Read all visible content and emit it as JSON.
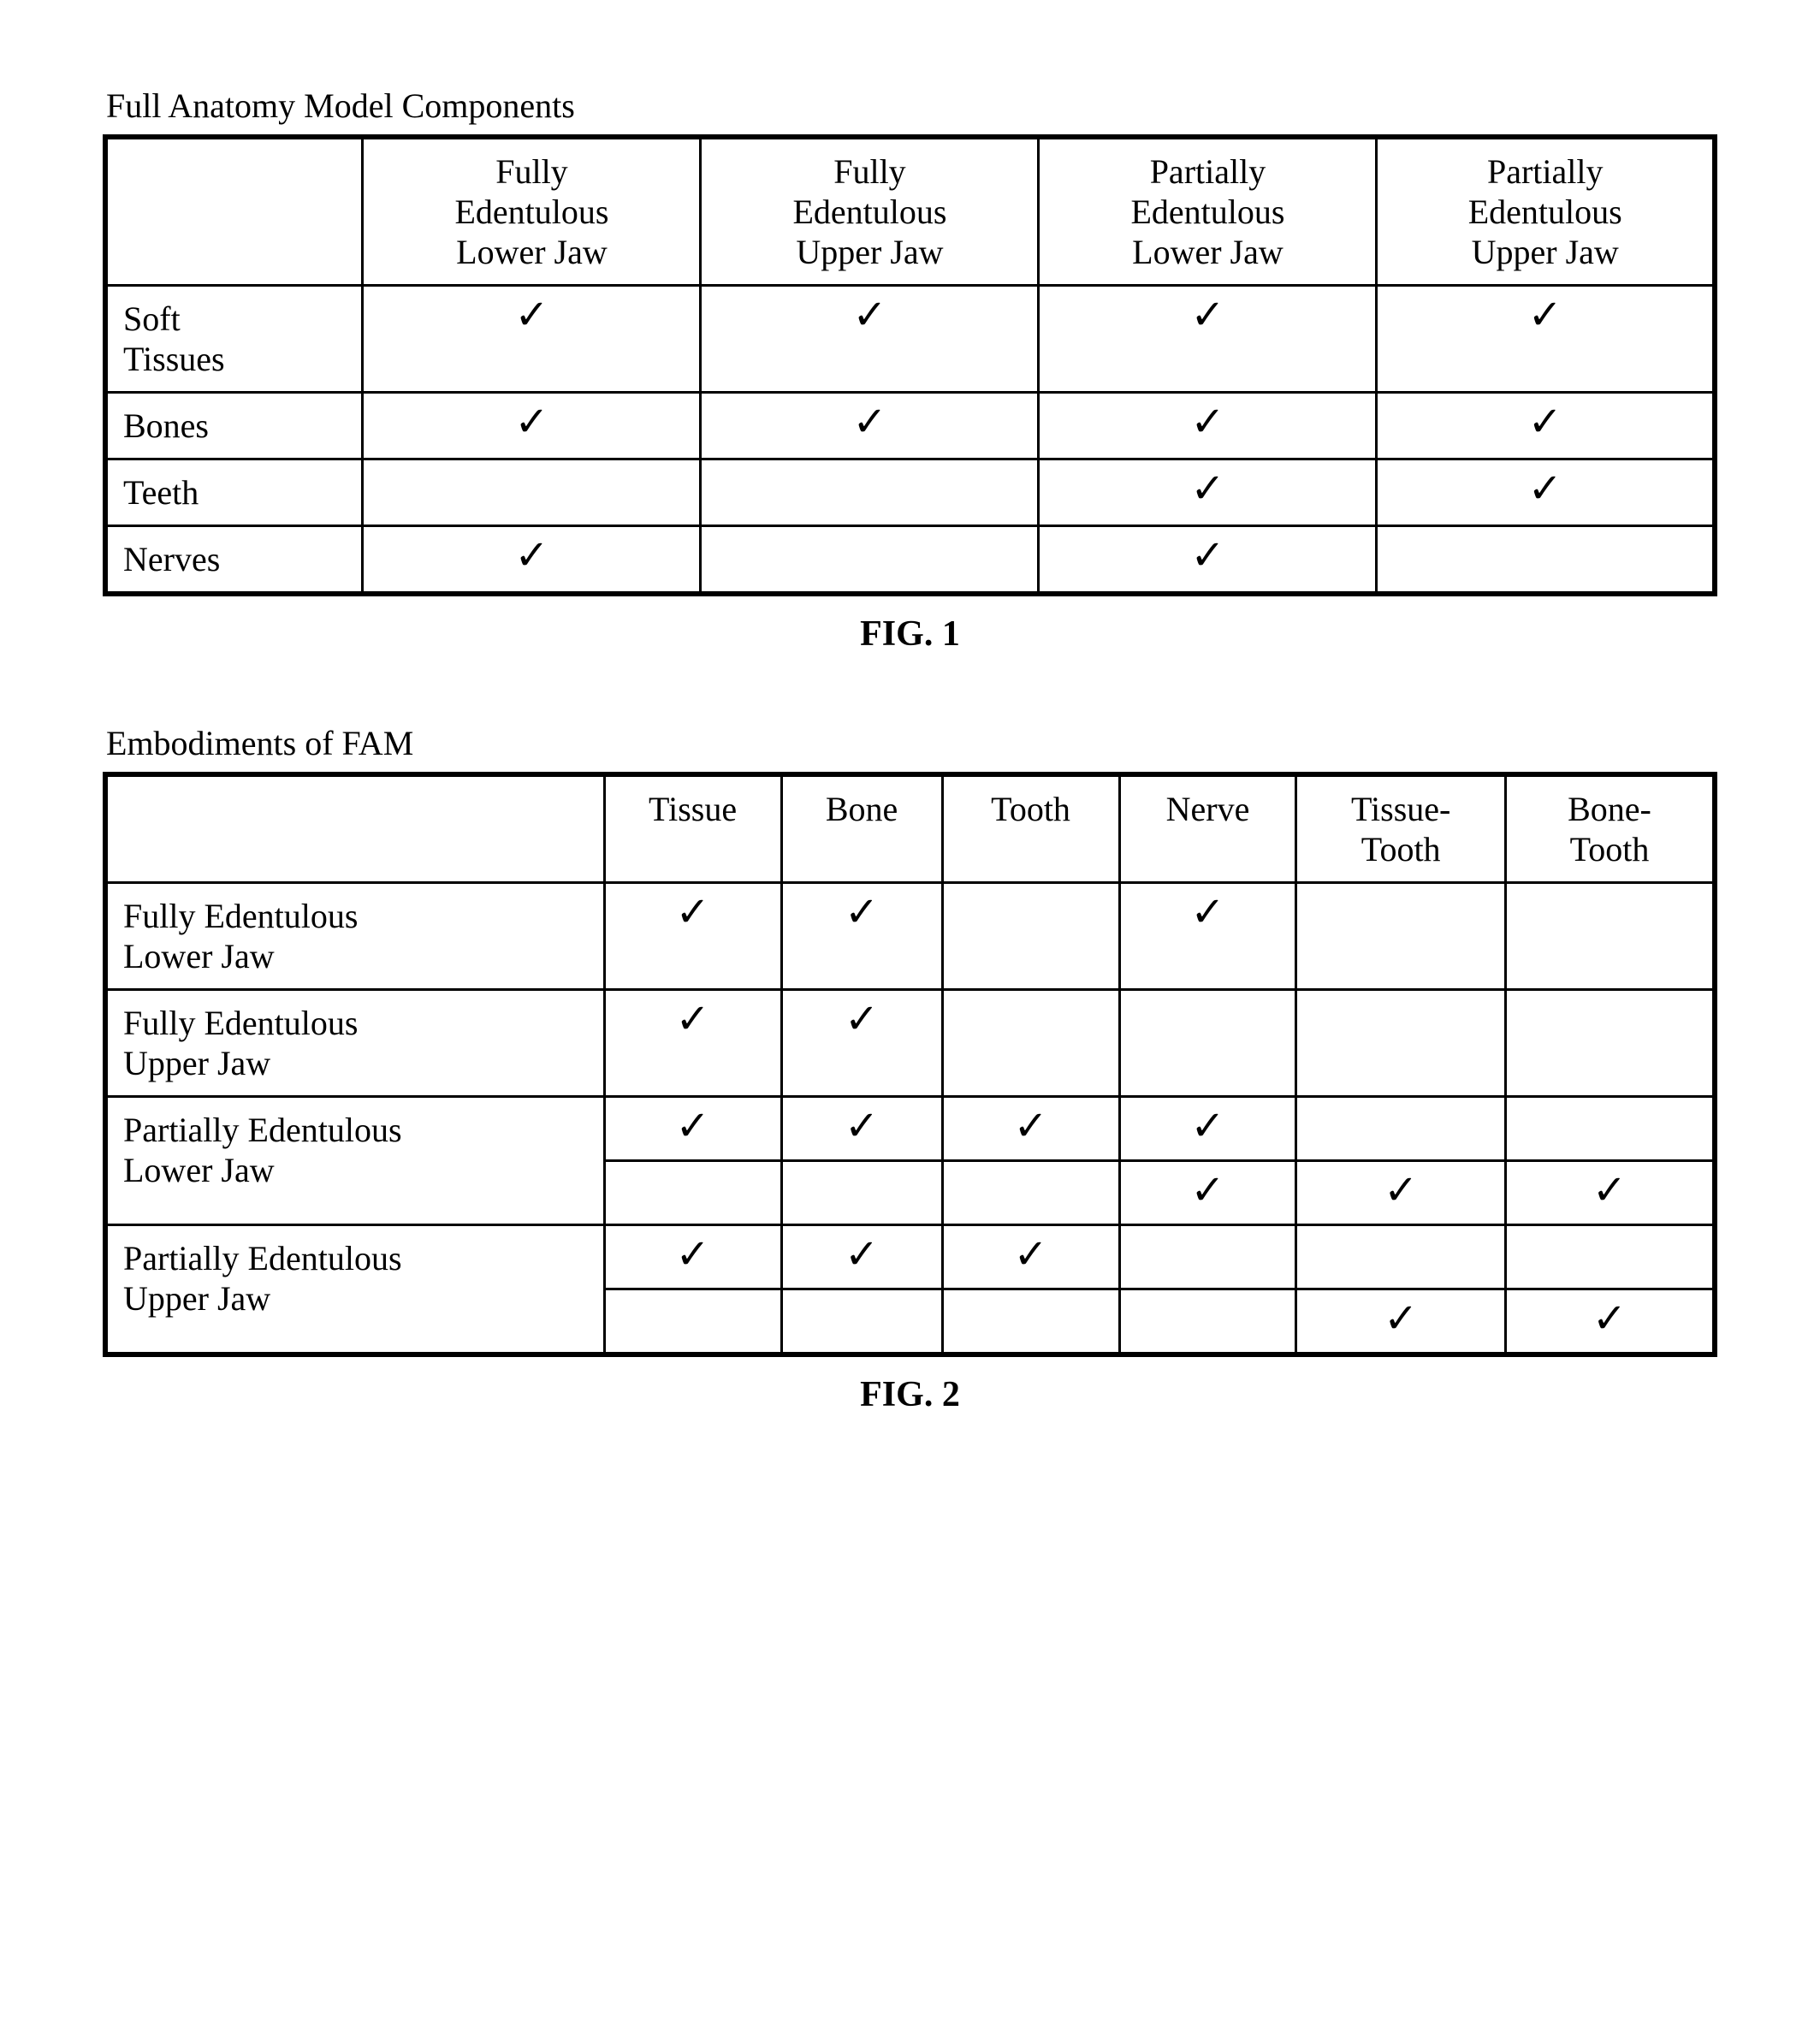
{
  "checkmark": "✓",
  "figure1": {
    "title": "Full Anatomy Model Components",
    "caption": "FIG. 1",
    "columns": [
      {
        "line1": "Fully",
        "line2": "Edentulous",
        "line3": "Lower Jaw"
      },
      {
        "line1": "Fully",
        "line2": "Edentulous",
        "line3": "Upper Jaw"
      },
      {
        "line1": "Partially",
        "line2": "Edentulous",
        "line3": "Lower Jaw"
      },
      {
        "line1": "Partially",
        "line2": "Edentulous",
        "line3": "Upper Jaw"
      }
    ],
    "rows": [
      {
        "label_l1": "Soft",
        "label_l2": "Tissues",
        "c1": true,
        "c2": true,
        "c3": true,
        "c4": true
      },
      {
        "label_l1": "Bones",
        "label_l2": "",
        "c1": true,
        "c2": true,
        "c3": true,
        "c4": true
      },
      {
        "label_l1": "Teeth",
        "label_l2": "",
        "c1": false,
        "c2": false,
        "c3": true,
        "c4": true
      },
      {
        "label_l1": "Nerves",
        "label_l2": "",
        "c1": true,
        "c2": false,
        "c3": true,
        "c4": false
      }
    ]
  },
  "figure2": {
    "title": "Embodiments of FAM",
    "caption": "FIG. 2",
    "columns": [
      "Tissue",
      "Bone",
      "Tooth",
      "Nerve",
      "Tissue-\nTooth",
      "Bone-\nTooth"
    ],
    "rows": [
      {
        "label_l1": "Fully Edentulous",
        "label_l2": "Lower Jaw",
        "cells": [
          true,
          true,
          false,
          true,
          false,
          false
        ],
        "rowspan_label": 1
      },
      {
        "label_l1": "Fully Edentulous",
        "label_l2": "Upper Jaw",
        "cells": [
          true,
          true,
          false,
          false,
          false,
          false
        ],
        "rowspan_label": 1
      },
      {
        "label_l1": "Partially Edentulous",
        "label_l2": "Lower Jaw",
        "cells": [
          true,
          true,
          true,
          true,
          false,
          false
        ],
        "rowspan_label": 2
      },
      {
        "label_l1": "",
        "label_l2": "",
        "cells": [
          false,
          false,
          false,
          true,
          true,
          true
        ],
        "rowspan_label": 0
      },
      {
        "label_l1": "Partially Edentulous",
        "label_l2": "Upper Jaw",
        "cells": [
          true,
          true,
          true,
          false,
          false,
          false
        ],
        "rowspan_label": 2
      },
      {
        "label_l1": "",
        "label_l2": "",
        "cells": [
          false,
          false,
          false,
          false,
          true,
          true
        ],
        "rowspan_label": 0
      }
    ]
  }
}
